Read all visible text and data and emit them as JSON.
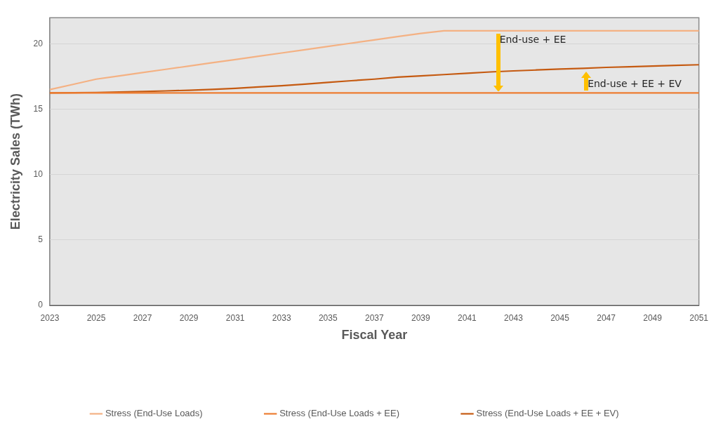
{
  "chart_data": {
    "type": "line",
    "xlabel": "Fiscal Year",
    "ylabel": "Electricity Sales (TWh)",
    "categories": [
      "2023",
      null,
      "2025",
      null,
      "2027",
      null,
      "2029",
      null,
      "2031",
      null,
      "2033",
      null,
      "2035",
      null,
      "2037",
      null,
      "2039",
      null,
      "2041",
      null,
      "2043",
      null,
      "2045",
      null,
      "2047",
      null,
      "2049",
      null,
      "2051"
    ],
    "series": [
      {
        "name": "Stress (End-Use Loads)",
        "color": "#f4b183",
        "values": [
          16.5,
          16.9,
          17.3,
          17.55,
          17.8,
          18.05,
          18.3,
          18.55,
          18.8,
          19.05,
          19.3,
          19.55,
          19.8,
          20.05,
          20.3,
          20.55,
          20.8,
          21.0,
          21.0,
          21.0,
          21.0,
          21.0,
          21.0,
          21.0,
          21.0,
          21.0,
          21.0,
          21.0,
          21.0
        ]
      },
      {
        "name": "Stress (End-Use Loads + EE)",
        "color": "#ed7d31",
        "values": [
          16.25,
          16.25,
          16.25,
          16.25,
          16.25,
          16.25,
          16.25,
          16.25,
          16.25,
          16.25,
          16.25,
          16.25,
          16.25,
          16.25,
          16.25,
          16.25,
          16.25,
          16.25,
          16.25,
          16.25,
          16.25,
          16.25,
          16.25,
          16.25,
          16.25,
          16.25,
          16.25,
          16.25,
          16.25
        ]
      },
      {
        "name": "Stress (End-Use Loads + EE + EV)",
        "color": "#c55a11",
        "values": [
          16.25,
          16.26,
          16.28,
          16.31,
          16.35,
          16.4,
          16.45,
          16.52,
          16.6,
          16.7,
          16.8,
          16.92,
          17.05,
          17.18,
          17.3,
          17.45,
          17.55,
          17.65,
          17.75,
          17.85,
          17.93,
          18.0,
          18.07,
          18.13,
          18.2,
          18.25,
          18.3,
          18.35,
          18.4
        ]
      }
    ],
    "ylim": [
      0,
      22
    ],
    "yticks": [
      0,
      5,
      10,
      15,
      20
    ],
    "grid": "y",
    "legend": "bottom",
    "marker": "none",
    "line_style": "solid",
    "annotations": [
      "End-use + EE",
      "End-use + EE + EV"
    ]
  }
}
